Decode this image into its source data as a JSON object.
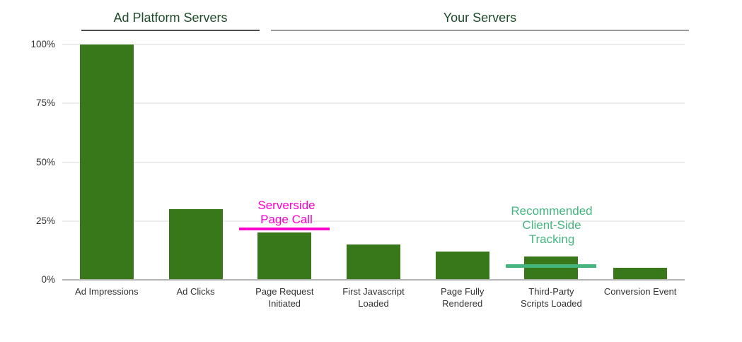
{
  "chart_data": {
    "type": "bar",
    "categories": [
      "Ad Impressions",
      "Ad Clicks",
      "Page Request Initiated",
      "First Javascript Loaded",
      "Page Fully Rendered",
      "Third-Party Scripts Loaded",
      "Conversion Event"
    ],
    "category_lines": [
      [
        "Ad Impressions"
      ],
      [
        "Ad Clicks"
      ],
      [
        "Page Request",
        "Initiated"
      ],
      [
        "First Javascript",
        "Loaded"
      ],
      [
        "Page Fully",
        "Rendered"
      ],
      [
        "Third-Party",
        "Scripts Loaded"
      ],
      [
        "Conversion Event"
      ]
    ],
    "values": [
      100,
      30,
      20,
      15,
      12,
      10,
      5
    ],
    "unit": "%",
    "ylim": [
      0,
      100
    ],
    "yticks": [
      0,
      25,
      50,
      75,
      100
    ],
    "ytick_labels": [
      "0%",
      "25%",
      "50%",
      "75%",
      "100%"
    ],
    "grid": true,
    "bar_color": "#38781a",
    "legend": "none",
    "title": ""
  },
  "section_headers": [
    {
      "label": "Ad Platform Servers",
      "covers": "Ad Impressions, Ad Clicks"
    },
    {
      "label": "Your Servers",
      "covers": "Page Request Initiated through Conversion Event"
    }
  ],
  "annotations": [
    {
      "text": "Serverside Page Call",
      "lines": [
        "Serverside",
        "Page Call"
      ],
      "color": "#ff00cc",
      "line_percent": 21.5,
      "column_index": 2,
      "marks": "Page Request Initiated (20%)"
    },
    {
      "text": "Recommended Client-Side Tracking",
      "lines": [
        "Recommended",
        "Client-Side",
        "Tracking"
      ],
      "color": "#45b57f",
      "line_percent": 6,
      "column_index": 5,
      "marks": "Third-Party Scripts Loaded (10%)"
    }
  ],
  "colors": {
    "bar": "#38781a",
    "section_title": "#1f4d2a",
    "axis_line": "#b3b3b3",
    "gridline": "#ececec",
    "tick_label": "#333333",
    "serverside_annotation": "#ff00cc",
    "recommended_annotation": "#45b57f"
  }
}
